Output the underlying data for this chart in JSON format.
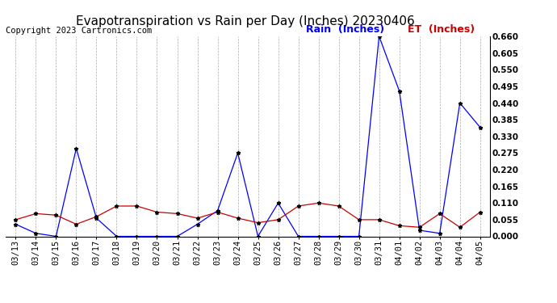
{
  "title": "Evapotranspiration vs Rain per Day (Inches) 20230406",
  "copyright": "Copyright 2023 Cartronics.com",
  "legend_rain": "Rain  (Inches)",
  "legend_et": "ET  (Inches)",
  "dates": [
    "03/13",
    "03/14",
    "03/15",
    "03/16",
    "03/17",
    "03/18",
    "03/19",
    "03/20",
    "03/21",
    "03/22",
    "03/23",
    "03/24",
    "03/25",
    "03/26",
    "03/27",
    "03/28",
    "03/29",
    "03/30",
    "03/31",
    "04/01",
    "04/02",
    "04/03",
    "04/04",
    "04/05"
  ],
  "rain": [
    0.04,
    0.01,
    0.0,
    0.29,
    0.06,
    0.0,
    0.0,
    0.0,
    0.0,
    0.04,
    0.085,
    0.275,
    0.0,
    0.11,
    0.0,
    0.0,
    0.0,
    0.0,
    0.66,
    0.48,
    0.02,
    0.01,
    0.44,
    0.36
  ],
  "et": [
    0.055,
    0.075,
    0.07,
    0.04,
    0.065,
    0.1,
    0.1,
    0.08,
    0.075,
    0.06,
    0.08,
    0.06,
    0.045,
    0.055,
    0.1,
    0.11,
    0.1,
    0.055,
    0.055,
    0.035,
    0.03,
    0.075,
    0.03,
    0.08
  ],
  "ylim": [
    0.0,
    0.66
  ],
  "yticks": [
    0.0,
    0.055,
    0.11,
    0.165,
    0.22,
    0.275,
    0.33,
    0.385,
    0.44,
    0.495,
    0.55,
    0.605,
    0.66
  ],
  "rain_color": "#0000ff",
  "et_color": "#cc0000",
  "bg_color": "#ffffff",
  "grid_color": "#aaaaaa",
  "title_fontsize": 11,
  "copyright_fontsize": 7.5,
  "legend_fontsize": 9,
  "tick_fontsize": 7.5
}
